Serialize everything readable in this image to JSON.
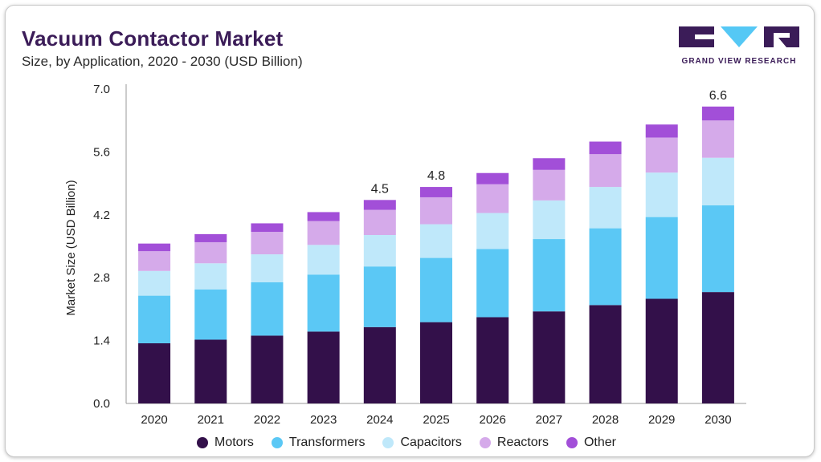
{
  "header": {
    "title": "Vacuum Contactor Market",
    "subtitle": "Size, by Application, 2020 - 2030 (USD Billion)"
  },
  "logo": {
    "name": "GRAND VIEW RESEARCH",
    "color": "#3b1c58",
    "accent": "#55c8f5"
  },
  "chart_data": {
    "type": "bar",
    "stacked": true,
    "ylabel": "Market Size (USD Billion)",
    "ylim": [
      0,
      7.0
    ],
    "yticks": [
      "0.0",
      "1.4",
      "2.8",
      "4.2",
      "5.6",
      "7.0"
    ],
    "ytick_values": [
      0,
      1.4,
      2.8,
      4.2,
      5.6,
      7.0
    ],
    "categories": [
      "2020",
      "2021",
      "2022",
      "2023",
      "2024",
      "2025",
      "2026",
      "2027",
      "2028",
      "2029",
      "2030"
    ],
    "series": [
      {
        "name": "Motors",
        "color": "#33104a",
        "values": [
          1.34,
          1.42,
          1.51,
          1.6,
          1.7,
          1.81,
          1.92,
          2.05,
          2.19,
          2.33,
          2.48
        ]
      },
      {
        "name": "Transformers",
        "color": "#5bc8f5",
        "values": [
          1.06,
          1.12,
          1.19,
          1.27,
          1.35,
          1.43,
          1.52,
          1.61,
          1.71,
          1.82,
          1.93
        ]
      },
      {
        "name": "Capacitors",
        "color": "#bfe8fa",
        "values": [
          0.55,
          0.58,
          0.62,
          0.66,
          0.7,
          0.75,
          0.8,
          0.86,
          0.92,
          0.99,
          1.06
        ]
      },
      {
        "name": "Reactors",
        "color": "#d5aaea",
        "values": [
          0.44,
          0.47,
          0.5,
          0.53,
          0.56,
          0.6,
          0.64,
          0.68,
          0.73,
          0.78,
          0.83
        ]
      },
      {
        "name": "Other",
        "color": "#a24fd8",
        "values": [
          0.17,
          0.18,
          0.19,
          0.2,
          0.22,
          0.23,
          0.25,
          0.26,
          0.28,
          0.29,
          0.31
        ]
      }
    ],
    "annotations": [
      {
        "category": "2024",
        "label": "4.5"
      },
      {
        "category": "2025",
        "label": "4.8"
      },
      {
        "category": "2030",
        "label": "6.6"
      }
    ],
    "legend_position": "bottom",
    "grid": false
  }
}
